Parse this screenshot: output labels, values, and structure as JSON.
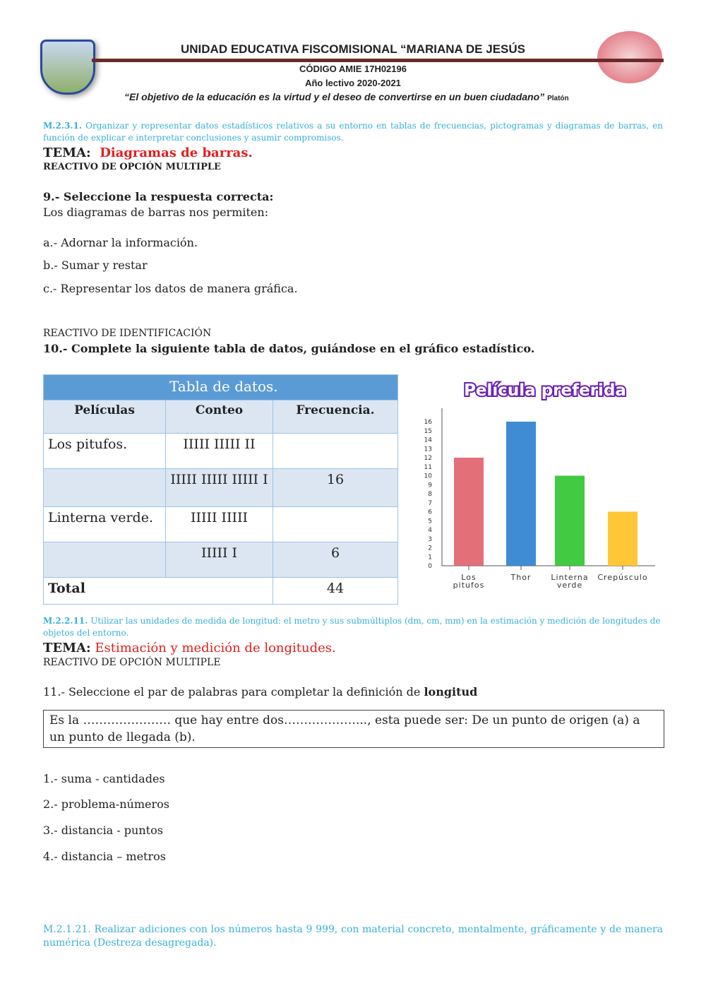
{
  "header": {
    "school": "UNIDAD EDUCATIVA FISCOMISIONAL “MARIANA DE JESÚS",
    "code": "CÓDIGO AMIE 17H02196",
    "year": "Año lectivo 2020-2021",
    "quote": "“El objetivo de la educación es la virtud y el deseo de convertirse en un buen ciudadano”",
    "quote_author": "Platón"
  },
  "s1": {
    "skill_code": "M.2.3.1.",
    "skill": " Organizar y representar datos estadísticos relativos a su entorno en tablas de frecuencias, pictogramas y diagramas de barras, en función de explicar e interpretar conclusiones y asumir compromisos.",
    "tema_label": "TEMA:",
    "tema": "Diagramas de barras.",
    "reactivo": "REACTIVO DE OPCIÓN MULTIPLE",
    "q": "9.- Seleccione la respuesta correcta:",
    "prompt": "Los diagramas de barras nos permiten:",
    "options": [
      "a.- Adornar la información.",
      "b.- Sumar y restar",
      "c.- Representar los datos de manera gráfica."
    ],
    "reactivo2": "REACTIVO DE IDENTIFICACIÓN",
    "q2": "10.- Complete la siguiente tabla de datos, guiándose en el gráfico estadístico."
  },
  "table": {
    "title": "Tabla de datos.",
    "headers": [
      "Películas",
      "Conteo",
      "Frecuencia."
    ],
    "rows": [
      [
        "Los pitufos.",
        "IIIII  IIIII  II",
        ""
      ],
      [
        "",
        "IIIII  IIIII IIIII I",
        "16"
      ],
      [
        "Linterna verde.",
        "IIIII  IIIII",
        ""
      ],
      [
        "",
        "IIIII  I",
        "6"
      ]
    ],
    "total_label": "Total",
    "total": "44"
  },
  "chart_data": {
    "type": "bar",
    "title": "Película preferida",
    "categories": [
      "Los pitufos",
      "Thor",
      "Linterna verde",
      "Crepúsculo"
    ],
    "values": [
      12,
      16,
      10,
      6
    ],
    "colors": [
      "#e0606a",
      "#2a7fd0",
      "#2ec42e",
      "#ffc020"
    ],
    "ylim": [
      0,
      16
    ],
    "yticks": [
      "0",
      "1",
      "2",
      "3",
      "4",
      "5",
      "6",
      "7",
      "8",
      "9",
      "10",
      "11",
      "12",
      "13",
      "14",
      "15",
      "16"
    ],
    "xlabel": "",
    "ylabel": ""
  },
  "s2": {
    "skill_code": "M.2.2.11.",
    "skill": " Utilizar las unidades de medida de longitud: el metro y sus submúltiplos (dm, cm, mm) en la estimación y medición de longitudes de objetos del entorno.",
    "tema_label": "TEMA:",
    "tema": "Estimación y medición de longitudes.",
    "reactivo": "REACTIVO DE OPCIÓN MULTIPLE",
    "q_pre": "11.- Seleccione el par de palabras para completar la definición de ",
    "q_bold": "longitud",
    "box": "Es la …………………. que hay entre dos………………..., esta puede ser: De un punto de origen (a) a un punto de llegada (b).",
    "options": [
      "1.- suma - cantidades",
      "2.- problema-números",
      "3.- distancia - puntos",
      "4.- distancia – metros"
    ]
  },
  "s3": {
    "skill": "M.2.1.21. Realizar adiciones con los números hasta 9 999, con material concreto, mentalmente, gráficamente y de manera numérica (Destreza desagregada)."
  }
}
